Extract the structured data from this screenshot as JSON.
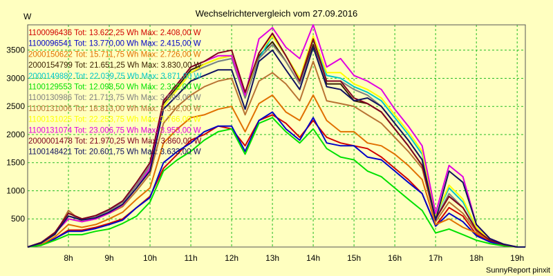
{
  "chart_data": {
    "type": "line",
    "title": "Wechselrichtervergleich vom 27.09.2016",
    "ylabel": "W",
    "xlabel": "",
    "credit": "SunnyReport pinxit",
    "ylim": [
      0,
      3950
    ],
    "xlim": [
      7.0,
      19.2
    ],
    "yticks": [
      500,
      1000,
      1500,
      2000,
      2500,
      3000,
      3500
    ],
    "xticks": [
      8,
      9,
      10,
      11,
      12,
      13,
      14,
      15,
      16,
      17,
      18,
      19
    ],
    "xtick_labels": [
      "8h",
      "9h",
      "10h",
      "11h",
      "12h",
      "13h",
      "14h",
      "15h",
      "16h",
      "17h",
      "18h",
      "19h"
    ],
    "grid": true,
    "legend_position": "top-left",
    "x": [
      7.0,
      7.33,
      7.67,
      8.0,
      8.33,
      8.67,
      9.0,
      9.33,
      9.67,
      10.0,
      10.33,
      10.67,
      11.0,
      11.33,
      11.67,
      12.0,
      12.33,
      12.67,
      13.0,
      13.33,
      13.67,
      14.0,
      14.33,
      14.67,
      15.0,
      15.33,
      15.67,
      16.0,
      16.33,
      16.67,
      17.0,
      17.33,
      17.67,
      18.0,
      18.33,
      18.67,
      19.0,
      19.2
    ],
    "series": [
      {
        "name": "1100096436",
        "legend": "1100096436 Tot: 13.622,25 Wh Max: 2.408,00 W",
        "color": "#d00000",
        "values": [
          0,
          40,
          150,
          300,
          300,
          350,
          420,
          500,
          700,
          900,
          1400,
          1650,
          1900,
          2000,
          2150,
          2100,
          1800,
          2250,
          2350,
          2200,
          1950,
          2250,
          1950,
          1850,
          1800,
          1750,
          1600,
          1400,
          1200,
          950,
          380,
          700,
          550,
          220,
          100,
          30,
          0,
          0
        ]
      },
      {
        "name": "1100096541",
        "legend": "1100096541 Tot: 13.770,00 Wh Max: 2.415,00 W",
        "color": "#0000c8",
        "values": [
          0,
          40,
          150,
          280,
          280,
          330,
          400,
          480,
          700,
          880,
          1500,
          1700,
          1850,
          2050,
          2150,
          2150,
          1700,
          2250,
          2400,
          2100,
          1900,
          2300,
          1850,
          1800,
          1800,
          1600,
          1550,
          1350,
          1150,
          950,
          370,
          600,
          450,
          200,
          90,
          30,
          0,
          0
        ]
      },
      {
        "name": "2000150622",
        "legend": "2000150622 Tot: 15.711,75 Wh Max: 2.726,00 W",
        "color": "#e07000",
        "values": [
          0,
          40,
          180,
          400,
          350,
          400,
          500,
          620,
          850,
          1050,
          1850,
          2100,
          2300,
          2350,
          2450,
          2500,
          2050,
          2550,
          2700,
          2400,
          2250,
          2700,
          2250,
          2050,
          2050,
          1850,
          1800,
          1650,
          1450,
          1200,
          400,
          500,
          350,
          250,
          120,
          40,
          0,
          0
        ]
      },
      {
        "name": "2000154799",
        "legend": "2000154799 Tot: 21.651,25 Wh Max: 3.830,00 W",
        "color": "#3a2000",
        "values": [
          0,
          80,
          250,
          600,
          500,
          550,
          650,
          800,
          1100,
          1450,
          2550,
          2850,
          3150,
          3250,
          3350,
          3400,
          2700,
          3400,
          3650,
          3300,
          2900,
          3600,
          2900,
          2900,
          2600,
          2550,
          2400,
          2100,
          1800,
          1450,
          500,
          900,
          700,
          300,
          120,
          40,
          0,
          0
        ]
      },
      {
        "name": "2000149882",
        "legend": "2000149882 Tot: 22.039,75 Wh Max: 3.871,00 W",
        "color": "#00c8c8",
        "values": [
          0,
          80,
          250,
          500,
          450,
          500,
          600,
          750,
          1050,
          1400,
          2500,
          2800,
          3100,
          3200,
          3300,
          3350,
          2650,
          3350,
          3750,
          3400,
          3000,
          3700,
          3050,
          3000,
          2850,
          2750,
          2600,
          2300,
          2000,
          1650,
          550,
          1050,
          800,
          350,
          130,
          40,
          0,
          0
        ]
      },
      {
        "name": "1100129553",
        "legend": "1100129553 Tot: 12.098,50 Wh Max: 2.322,00 W",
        "color": "#00e000",
        "values": [
          0,
          30,
          120,
          220,
          220,
          280,
          320,
          420,
          550,
          800,
          1350,
          1550,
          1700,
          1900,
          2050,
          2100,
          1650,
          2200,
          2300,
          2050,
          1850,
          2100,
          1750,
          1600,
          1550,
          1350,
          1250,
          1050,
          850,
          650,
          250,
          320,
          220,
          120,
          60,
          20,
          0,
          0
        ]
      },
      {
        "name": "1100130986",
        "legend": "1100130986 Tot: 21.713,75 Wh Max: 3.693,00 W",
        "color": "#808080",
        "values": [
          0,
          80,
          250,
          550,
          500,
          550,
          650,
          800,
          1100,
          1450,
          2500,
          2800,
          3100,
          3200,
          3300,
          3350,
          2650,
          3350,
          3600,
          3300,
          2900,
          3550,
          2950,
          2950,
          2800,
          2700,
          2500,
          2200,
          1900,
          1550,
          500,
          950,
          700,
          320,
          120,
          40,
          0,
          0
        ]
      },
      {
        "name": "1100131006",
        "legend": "1100131006 Tot: 18.813,00 Wh Max: 3.342,00 W",
        "color": "#b87333",
        "values": [
          0,
          70,
          220,
          650,
          450,
          500,
          600,
          720,
          1000,
          1300,
          2200,
          2500,
          2700,
          2850,
          2950,
          3000,
          2350,
          2950,
          3100,
          2900,
          2600,
          3300,
          2600,
          2550,
          2500,
          2350,
          2200,
          1950,
          1700,
          1400,
          450,
          800,
          600,
          280,
          120,
          40,
          0,
          0
        ]
      },
      {
        "name": "1100131025",
        "legend": "1100131025 Tot: 22.253,75 Wh Max: 3.766,00 W",
        "color": "#ffff00",
        "values": [
          0,
          80,
          250,
          500,
          450,
          500,
          600,
          750,
          1050,
          1400,
          2500,
          2800,
          3100,
          3250,
          3350,
          3400,
          2700,
          3450,
          3750,
          3400,
          3000,
          3750,
          3100,
          3100,
          2900,
          2800,
          2650,
          2350,
          2050,
          1700,
          550,
          1100,
          850,
          350,
          130,
          40,
          0,
          0
        ]
      },
      {
        "name": "1100131074",
        "legend": "1100131074 Tot: 23.006,75 Wh Max: 3.953,00 W",
        "color": "#e000e0",
        "values": [
          0,
          80,
          250,
          500,
          450,
          500,
          600,
          750,
          1050,
          1400,
          2600,
          2900,
          3200,
          3300,
          3400,
          3400,
          2700,
          3700,
          3900,
          3550,
          3350,
          3950,
          3200,
          3350,
          3050,
          2950,
          2800,
          2450,
          2150,
          1800,
          600,
          1450,
          1250,
          400,
          150,
          50,
          0,
          0
        ]
      },
      {
        "name": "2000001478",
        "legend": "2000001478 Tot: 21.970,25 Wh Max: 3.860,00 W",
        "color": "#800020",
        "values": [
          0,
          80,
          260,
          600,
          500,
          560,
          670,
          820,
          1150,
          1500,
          2600,
          2900,
          3200,
          3300,
          3450,
          3500,
          2750,
          3450,
          3800,
          3400,
          2950,
          3700,
          2950,
          2950,
          2650,
          2550,
          2400,
          2100,
          1800,
          1450,
          500,
          900,
          700,
          300,
          120,
          40,
          0,
          0
        ]
      },
      {
        "name": "1100148421",
        "legend": "1100148421 Tot: 20.601,75 Wh Max: 3.633,00 W",
        "color": "#101060",
        "values": [
          0,
          70,
          230,
          550,
          480,
          520,
          620,
          760,
          1050,
          1350,
          2450,
          2700,
          2950,
          3050,
          3150,
          3150,
          2450,
          3300,
          3500,
          3150,
          2800,
          3550,
          2850,
          2800,
          2600,
          2650,
          2500,
          2200,
          1900,
          1550,
          480,
          1350,
          1150,
          400,
          150,
          50,
          0,
          0
        ]
      }
    ]
  }
}
